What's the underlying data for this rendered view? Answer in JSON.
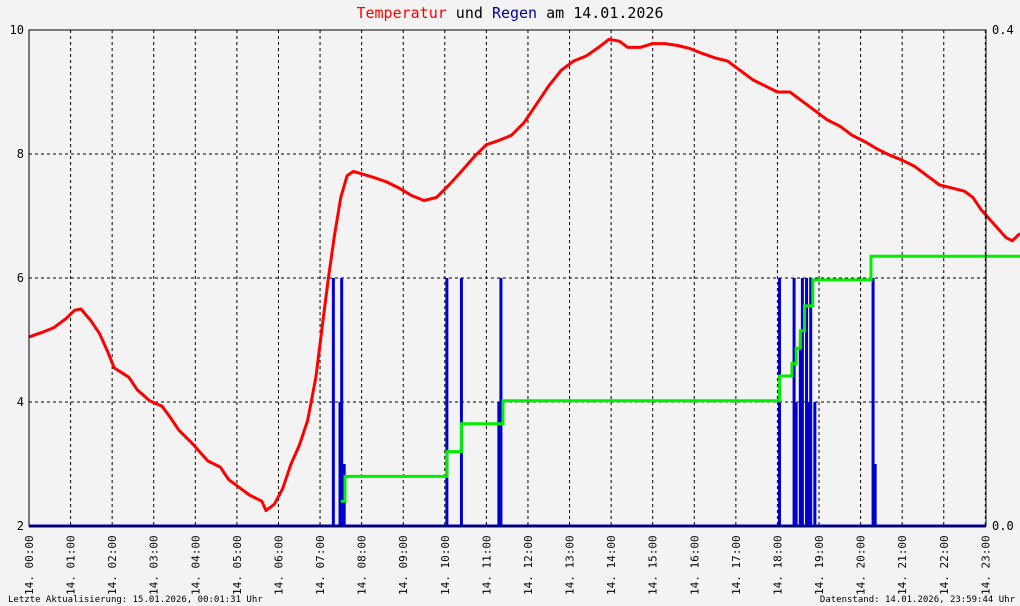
{
  "title": {
    "part1": "Temperatur",
    "part2": " und ",
    "part3": "Regen",
    "part4": " am 14.01.2026"
  },
  "footer": {
    "left": "Letzte Aktualisierung: 15.01.2026, 00:01:31 Uhr",
    "right": "Datenstand: 14.01.2026, 23:59:44 Uhr"
  },
  "colors": {
    "background": "#f3f3f3",
    "temperature": "#ff0000",
    "rain": "#0000cc",
    "rain_sum": "#00ee00",
    "title_temperature": "#ff0000",
    "title_rain": "#000099",
    "grid": "#000000"
  },
  "chart_data": {
    "type": "line",
    "title": "Temperatur und Regen am 14.01.2026",
    "x_unit": "hours",
    "xlim": [
      0,
      24
    ],
    "x_tick_labels": [
      "14. 00:00",
      "14. 01:00",
      "14. 02:00",
      "14. 03:00",
      "14. 04:00",
      "14. 05:00",
      "14. 06:00",
      "14. 07:00",
      "14. 08:00",
      "14. 09:00",
      "14. 10:00",
      "14. 11:00",
      "14. 12:00",
      "14. 13:00",
      "14. 14:00",
      "14. 15:00",
      "14. 16:00",
      "14. 17:00",
      "14. 18:00",
      "14. 19:00",
      "14. 20:00",
      "14. 21:00",
      "14. 22:00",
      "14. 23:00"
    ],
    "y_left": {
      "lim": [
        2,
        10
      ],
      "ticks": [
        "2",
        "4",
        "6",
        "8",
        "10"
      ]
    },
    "y_right": {
      "lim": [
        0,
        0.4
      ],
      "ticks": [
        "0.0",
        "0.4"
      ]
    },
    "grid": true,
    "series": [
      {
        "name": "Temperatur",
        "axis": "left",
        "points": [
          [
            0,
            5.05
          ],
          [
            0.3,
            5.12
          ],
          [
            0.6,
            5.2
          ],
          [
            0.9,
            5.35
          ],
          [
            1.1,
            5.48
          ],
          [
            1.25,
            5.5
          ],
          [
            1.5,
            5.3
          ],
          [
            1.7,
            5.1
          ],
          [
            1.9,
            4.8
          ],
          [
            2.05,
            4.55
          ],
          [
            2.4,
            4.4
          ],
          [
            2.6,
            4.2
          ],
          [
            2.9,
            4.02
          ],
          [
            3.2,
            3.93
          ],
          [
            3.4,
            3.75
          ],
          [
            3.6,
            3.55
          ],
          [
            3.9,
            3.35
          ],
          [
            4.1,
            3.2
          ],
          [
            4.3,
            3.05
          ],
          [
            4.6,
            2.95
          ],
          [
            4.8,
            2.75
          ],
          [
            5.1,
            2.6
          ],
          [
            5.3,
            2.5
          ],
          [
            5.6,
            2.4
          ],
          [
            5.7,
            2.25
          ],
          [
            5.9,
            2.35
          ],
          [
            6.1,
            2.6
          ],
          [
            6.3,
            3.0
          ],
          [
            6.5,
            3.3
          ],
          [
            6.7,
            3.7
          ],
          [
            6.9,
            4.4
          ],
          [
            7.05,
            5.2
          ],
          [
            7.2,
            6.0
          ],
          [
            7.35,
            6.7
          ],
          [
            7.5,
            7.3
          ],
          [
            7.65,
            7.65
          ],
          [
            7.8,
            7.72
          ],
          [
            8.0,
            7.68
          ],
          [
            8.3,
            7.62
          ],
          [
            8.6,
            7.55
          ],
          [
            8.9,
            7.45
          ],
          [
            9.2,
            7.33
          ],
          [
            9.5,
            7.25
          ],
          [
            9.8,
            7.3
          ],
          [
            10.1,
            7.5
          ],
          [
            10.4,
            7.72
          ],
          [
            10.7,
            7.95
          ],
          [
            11.0,
            8.15
          ],
          [
            11.3,
            8.22
          ],
          [
            11.6,
            8.3
          ],
          [
            11.9,
            8.5
          ],
          [
            12.2,
            8.8
          ],
          [
            12.5,
            9.1
          ],
          [
            12.8,
            9.35
          ],
          [
            13.1,
            9.5
          ],
          [
            13.4,
            9.58
          ],
          [
            13.7,
            9.72
          ],
          [
            13.95,
            9.85
          ],
          [
            14.2,
            9.82
          ],
          [
            14.4,
            9.72
          ],
          [
            14.7,
            9.72
          ],
          [
            15.0,
            9.78
          ],
          [
            15.3,
            9.78
          ],
          [
            15.6,
            9.75
          ],
          [
            15.9,
            9.7
          ],
          [
            16.2,
            9.62
          ],
          [
            16.5,
            9.55
          ],
          [
            16.8,
            9.5
          ],
          [
            17.1,
            9.35
          ],
          [
            17.4,
            9.2
          ],
          [
            17.7,
            9.1
          ],
          [
            18.0,
            9.0
          ],
          [
            18.3,
            9.0
          ],
          [
            18.6,
            8.85
          ],
          [
            18.9,
            8.7
          ],
          [
            19.2,
            8.55
          ],
          [
            19.5,
            8.45
          ],
          [
            19.8,
            8.3
          ],
          [
            20.1,
            8.2
          ],
          [
            20.4,
            8.08
          ],
          [
            20.7,
            7.98
          ],
          [
            21.0,
            7.9
          ],
          [
            21.3,
            7.8
          ],
          [
            21.6,
            7.65
          ],
          [
            21.9,
            7.5
          ],
          [
            22.2,
            7.45
          ],
          [
            22.5,
            7.4
          ],
          [
            22.7,
            7.3
          ],
          [
            22.9,
            7.1
          ],
          [
            23.1,
            6.95
          ],
          [
            23.3,
            6.8
          ],
          [
            23.5,
            6.65
          ],
          [
            23.65,
            6.6
          ],
          [
            23.8,
            6.7
          ],
          [
            24.0,
            6.75
          ],
          [
            24.1,
            6.9
          ],
          [
            24.3,
            6.95
          ],
          [
            24.5,
            6.85
          ]
        ]
      },
      {
        "name": "Regen",
        "axis": "right",
        "type": "bar",
        "points": [
          [
            7.32,
            0.2
          ],
          [
            7.48,
            0.1
          ],
          [
            7.52,
            0.2
          ],
          [
            7.58,
            0.05
          ],
          [
            10.05,
            0.2
          ],
          [
            10.4,
            0.2
          ],
          [
            11.3,
            0.1
          ],
          [
            11.35,
            0.2
          ],
          [
            18.05,
            0.2
          ],
          [
            18.4,
            0.2
          ],
          [
            18.45,
            0.1
          ],
          [
            18.55,
            0.15
          ],
          [
            18.6,
            0.2
          ],
          [
            18.7,
            0.2
          ],
          [
            18.75,
            0.1
          ],
          [
            18.8,
            0.2
          ],
          [
            18.9,
            0.1
          ],
          [
            20.3,
            0.2
          ],
          [
            20.35,
            0.05
          ]
        ]
      },
      {
        "name": "Regensumme",
        "axis": "left",
        "type": "step",
        "points": [
          [
            7.5,
            2.4
          ],
          [
            7.6,
            2.4
          ],
          [
            7.6,
            2.8
          ],
          [
            10.05,
            2.8
          ],
          [
            10.05,
            3.2
          ],
          [
            10.4,
            3.2
          ],
          [
            10.4,
            3.65
          ],
          [
            11.4,
            3.65
          ],
          [
            11.4,
            4.02
          ],
          [
            18.05,
            4.02
          ],
          [
            18.05,
            4.42
          ],
          [
            18.35,
            4.42
          ],
          [
            18.35,
            4.62
          ],
          [
            18.45,
            4.62
          ],
          [
            18.45,
            4.87
          ],
          [
            18.55,
            4.87
          ],
          [
            18.55,
            5.15
          ],
          [
            18.65,
            5.15
          ],
          [
            18.65,
            5.55
          ],
          [
            18.85,
            5.55
          ],
          [
            18.85,
            5.97
          ],
          [
            20.25,
            5.97
          ],
          [
            20.25,
            6.35
          ],
          [
            24.5,
            6.35
          ]
        ]
      }
    ]
  }
}
